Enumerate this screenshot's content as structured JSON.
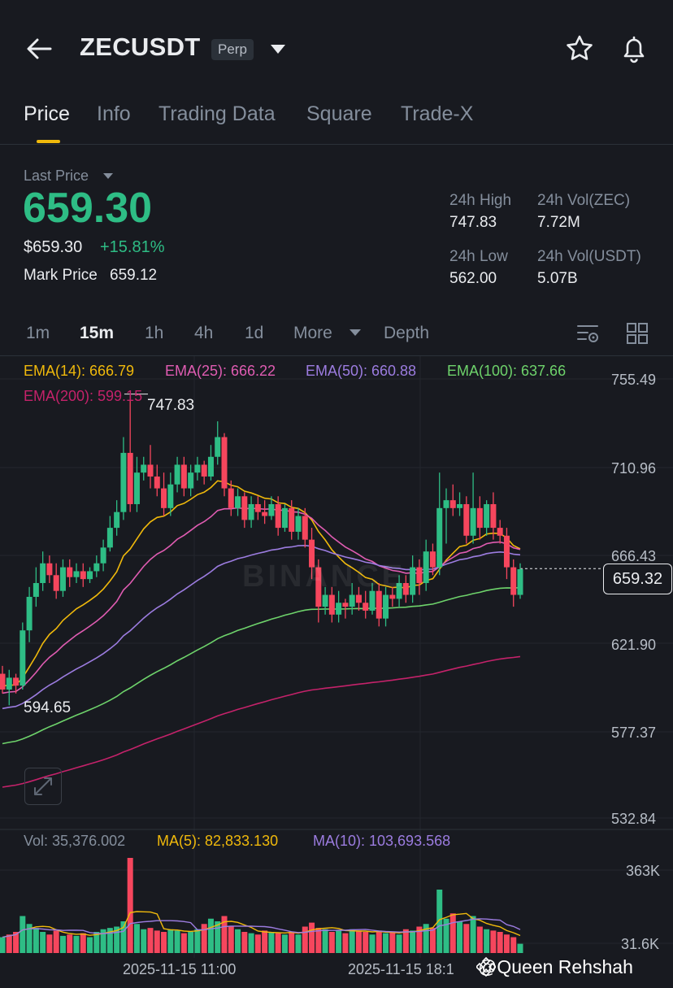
{
  "header": {
    "symbol": "ZECUSDT",
    "contract": "Perp"
  },
  "tabs": [
    {
      "label": "Price",
      "active": true
    },
    {
      "label": "Info"
    },
    {
      "label": "Trading Data"
    },
    {
      "label": "Square"
    },
    {
      "label": "Trade-X"
    }
  ],
  "price": {
    "label": "Last Price",
    "last": "659.30",
    "usd": "$659.30",
    "change": "+15.81%",
    "mark_label": "Mark Price",
    "mark_value": "659.12"
  },
  "stats": {
    "high_label": "24h High",
    "high": "747.83",
    "low_label": "24h Low",
    "low": "562.00",
    "vol_zec_label": "24h Vol(ZEC)",
    "vol_zec": "7.72M",
    "vol_usdt_label": "24h Vol(USDT)",
    "vol_usdt": "5.07B"
  },
  "timeframes": [
    "1m",
    "15m",
    "1h",
    "4h",
    "1d",
    "More",
    "Depth"
  ],
  "active_timeframe": "15m",
  "indicators": {
    "ema14": "EMA(14): 666.79",
    "ema25": "EMA(25): 666.22",
    "ema50": "EMA(50): 660.88",
    "ema100": "EMA(100): 637.66",
    "ema200": "EMA(200): 599.15"
  },
  "colors": {
    "up": "#2ebd85",
    "down": "#f6465d",
    "ema14": "#f0b90b",
    "ema25": "#e05cb2",
    "ema50": "#9c7ce0",
    "ema100": "#6ed36b",
    "ema200": "#c4226a",
    "accent": "#f0b90b"
  },
  "icons": [
    "back-arrow-icon",
    "dropdown-caret-icon",
    "star-icon",
    "bell-icon",
    "indicator-settings-icon",
    "layout-grid-icon",
    "expand-icon",
    "binance-logo-icon"
  ],
  "chart_data": {
    "type": "candlestick",
    "interval": "15m",
    "price_axis": [
      "755.49",
      "710.96",
      "666.43",
      "621.90",
      "577.37",
      "532.84"
    ],
    "ylim": [
      532.84,
      755.49
    ],
    "current_price_tag": "659.32",
    "high_marker": "747.83",
    "low_marker": "594.65",
    "x_labels": [
      "2025-11-15 11:00",
      "2025-11-15 18:1"
    ],
    "candles": [
      [
        606,
        598,
        610,
        596
      ],
      [
        598,
        604,
        608,
        590
      ],
      [
        604,
        600,
        606,
        596
      ],
      [
        600,
        628,
        632,
        598
      ],
      [
        628,
        645,
        650,
        622
      ],
      [
        645,
        652,
        660,
        640
      ],
      [
        652,
        662,
        668,
        648
      ],
      [
        662,
        656,
        666,
        652
      ],
      [
        656,
        648,
        662,
        644
      ],
      [
        648,
        660,
        664,
        645
      ],
      [
        660,
        655,
        664,
        650
      ],
      [
        655,
        658,
        662,
        652
      ],
      [
        658,
        654,
        662,
        650
      ],
      [
        654,
        658,
        660,
        652
      ],
      [
        658,
        662,
        666,
        655
      ],
      [
        662,
        670,
        674,
        658
      ],
      [
        670,
        680,
        686,
        668
      ],
      [
        680,
        688,
        694,
        676
      ],
      [
        688,
        718,
        726,
        684
      ],
      [
        718,
        692,
        748,
        688
      ],
      [
        692,
        708,
        716,
        688
      ],
      [
        708,
        712,
        716,
        704
      ],
      [
        712,
        706,
        722,
        700
      ],
      [
        706,
        700,
        712,
        696
      ],
      [
        700,
        690,
        708,
        686
      ],
      [
        690,
        702,
        708,
        686
      ],
      [
        702,
        712,
        716,
        698
      ],
      [
        712,
        700,
        716,
        696
      ],
      [
        700,
        708,
        712,
        696
      ],
      [
        708,
        712,
        716,
        704
      ],
      [
        712,
        706,
        714,
        702
      ],
      [
        706,
        716,
        722,
        704
      ],
      [
        716,
        726,
        734,
        712
      ],
      [
        726,
        700,
        728,
        696
      ],
      [
        700,
        690,
        704,
        686
      ],
      [
        690,
        696,
        700,
        686
      ],
      [
        696,
        684,
        698,
        680
      ],
      [
        684,
        692,
        696,
        680
      ],
      [
        692,
        688,
        696,
        684
      ],
      [
        688,
        686,
        694,
        682
      ],
      [
        686,
        692,
        696,
        684
      ],
      [
        692,
        680,
        696,
        676
      ],
      [
        680,
        690,
        692,
        678
      ],
      [
        690,
        678,
        694,
        674
      ],
      [
        678,
        686,
        690,
        674
      ],
      [
        686,
        674,
        690,
        670
      ],
      [
        674,
        660,
        680,
        654
      ],
      [
        660,
        640,
        664,
        632
      ],
      [
        640,
        646,
        650,
        636
      ],
      [
        646,
        636,
        650,
        632
      ],
      [
        636,
        642,
        648,
        632
      ],
      [
        642,
        640,
        644,
        634
      ],
      [
        640,
        646,
        652,
        636
      ],
      [
        646,
        642,
        650,
        638
      ],
      [
        642,
        638,
        648,
        634
      ],
      [
        638,
        648,
        652,
        636
      ],
      [
        648,
        634,
        652,
        630
      ],
      [
        634,
        646,
        650,
        630
      ],
      [
        646,
        644,
        650,
        640
      ],
      [
        644,
        652,
        656,
        640
      ],
      [
        652,
        646,
        656,
        642
      ],
      [
        646,
        660,
        666,
        642
      ],
      [
        660,
        652,
        664,
        646
      ],
      [
        652,
        668,
        674,
        648
      ],
      [
        668,
        660,
        672,
        656
      ],
      [
        660,
        690,
        708,
        656
      ],
      [
        690,
        694,
        700,
        672
      ],
      [
        694,
        690,
        702,
        686
      ],
      [
        690,
        692,
        698,
        686
      ],
      [
        692,
        676,
        696,
        672
      ],
      [
        676,
        690,
        708,
        672
      ],
      [
        690,
        680,
        696,
        674
      ],
      [
        680,
        692,
        694,
        676
      ],
      [
        692,
        680,
        698,
        674
      ],
      [
        680,
        676,
        684,
        672
      ],
      [
        676,
        660,
        680,
        654
      ],
      [
        660,
        646,
        664,
        640
      ],
      [
        646,
        659,
        662,
        644
      ]
    ]
  },
  "volume": {
    "vol_label": "Vol: 35,376.002",
    "ma5_label": "MA(5): 82,833.130",
    "ma10_label": "MA(10): 103,693.568",
    "axis": [
      "363K",
      "31.6K"
    ],
    "values": [
      60,
      70,
      80,
      140,
      110,
      95,
      80,
      70,
      85,
      65,
      70,
      65,
      75,
      60,
      80,
      90,
      95,
      100,
      120,
      360,
      110,
      90,
      95,
      85,
      80,
      90,
      85,
      75,
      80,
      90,
      110,
      130,
      120,
      140,
      100,
      90,
      80,
      75,
      70,
      85,
      80,
      75,
      70,
      80,
      70,
      100,
      115,
      95,
      90,
      80,
      85,
      75,
      90,
      85,
      80,
      70,
      85,
      75,
      80,
      70,
      90,
      85,
      100,
      110,
      95,
      240,
      130,
      150,
      120,
      110,
      140,
      100,
      90,
      85,
      80,
      70,
      60,
      35
    ],
    "up": [
      1,
      0,
      0,
      1,
      1,
      1,
      1,
      0,
      0,
      1,
      0,
      1,
      0,
      1,
      1,
      1,
      1,
      1,
      1,
      0,
      1,
      1,
      0,
      0,
      0,
      1,
      1,
      0,
      1,
      1,
      0,
      1,
      1,
      0,
      0,
      1,
      0,
      1,
      0,
      0,
      1,
      0,
      1,
      0,
      1,
      0,
      0,
      0,
      1,
      0,
      1,
      0,
      1,
      0,
      0,
      1,
      0,
      1,
      0,
      1,
      0,
      1,
      0,
      1,
      0,
      1,
      1,
      0,
      1,
      0,
      1,
      0,
      1,
      0,
      0,
      0,
      0,
      1
    ]
  },
  "watermark": "BINANCE",
  "credit": "@Queen Rehshah"
}
